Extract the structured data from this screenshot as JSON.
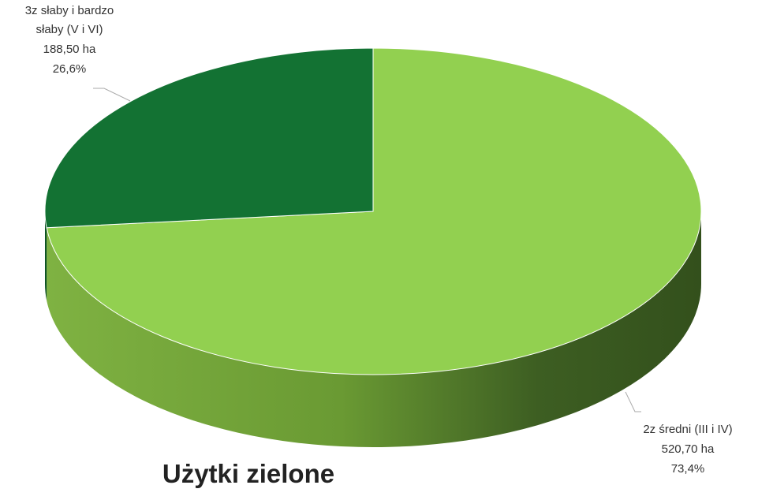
{
  "chart_data": {
    "type": "pie",
    "title": "Użytki zielone",
    "categories": [
      "2z średni (III i IV)",
      "3z słaby i bardzo słaby (V i VI)"
    ],
    "values": [
      73.4,
      26.6
    ],
    "value_labels": [
      "73,4%",
      "26,6%"
    ],
    "area_labels": [
      "520,70 ha",
      "188,50 ha"
    ],
    "colors": [
      "#92d050",
      "#137233"
    ]
  }
}
